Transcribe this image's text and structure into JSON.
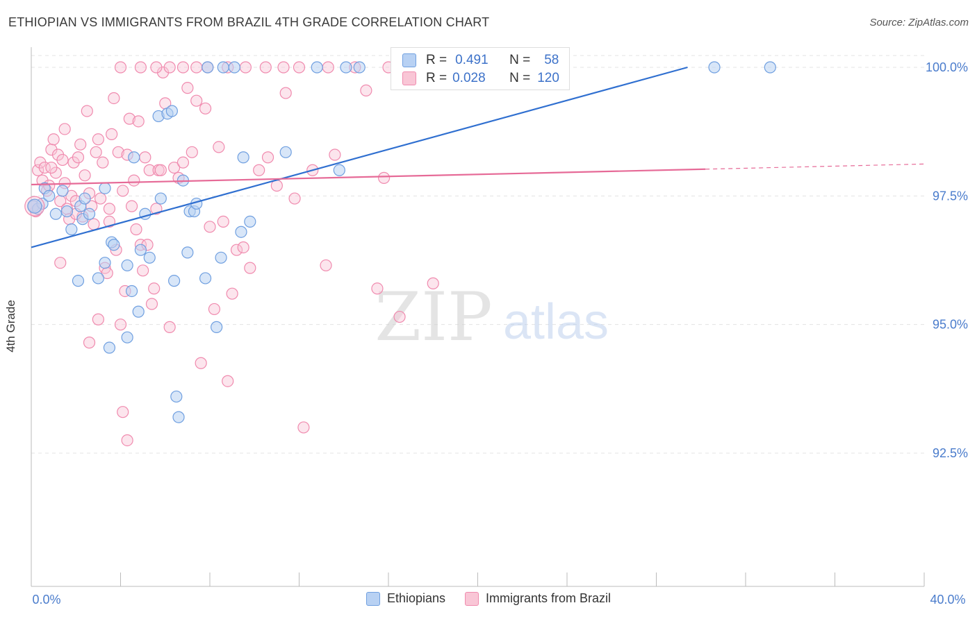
{
  "header": {
    "title": "ETHIOPIAN VS IMMIGRANTS FROM BRAZIL 4TH GRADE CORRELATION CHART",
    "source": "Source: ZipAtlas.com"
  },
  "watermark": {
    "zip": "ZIP",
    "atlas": "atlas"
  },
  "stats": [
    {
      "r_label": "R =",
      "r_value": "0.491",
      "n_label": "N =",
      "n_value": "58",
      "color": "#6f9fe0"
    },
    {
      "r_label": "R =",
      "r_value": "0.028",
      "n_label": "N =",
      "n_value": "120",
      "color": "#f08aae"
    }
  ],
  "legend": [
    {
      "label": "Ethiopians",
      "fill": "#b8d1f3",
      "stroke": "#6f9fe0"
    },
    {
      "label": "Immigrants from Brazil",
      "fill": "#f9c6d6",
      "stroke": "#f08aae"
    }
  ],
  "chart_data": {
    "type": "scatter",
    "title": "ETHIOPIAN VS IMMIGRANTS FROM BRAZIL 4TH GRADE CORRELATION CHART",
    "xlabel": "",
    "ylabel": "4th Grade",
    "xlim": [
      0,
      40
    ],
    "ylim": [
      90.0,
      100.5
    ],
    "x_tick_labels": [
      "0.0%",
      "40.0%"
    ],
    "y_ticks": [
      92.5,
      95.0,
      97.5,
      100.0
    ],
    "y_tick_labels": [
      "92.5%",
      "95.0%",
      "97.5%",
      "100.0%"
    ],
    "grid": true,
    "series": [
      {
        "name": "Ethiopians",
        "color": "#6f9fe0",
        "trend": {
          "x": [
            0.0,
            29.4
          ],
          "y": [
            96.5,
            100.0
          ]
        },
        "points": [
          [
            0.1,
            97.3
          ],
          [
            0.3,
            97.25
          ],
          [
            0.5,
            97.35
          ],
          [
            0.6,
            97.65
          ],
          [
            0.8,
            97.5
          ],
          [
            1.1,
            97.15
          ],
          [
            1.4,
            97.6
          ],
          [
            1.6,
            97.2
          ],
          [
            1.8,
            96.85
          ],
          [
            2.2,
            97.3
          ],
          [
            2.4,
            97.45
          ],
          [
            2.3,
            97.05
          ],
          [
            2.6,
            97.15
          ],
          [
            2.1,
            95.85
          ],
          [
            3.0,
            95.9
          ],
          [
            3.3,
            96.2
          ],
          [
            3.6,
            96.6
          ],
          [
            3.7,
            96.55
          ],
          [
            3.3,
            97.65
          ],
          [
            4.3,
            96.15
          ],
          [
            4.5,
            95.65
          ],
          [
            4.8,
            95.25
          ],
          [
            4.9,
            96.45
          ],
          [
            5.1,
            97.15
          ],
          [
            5.3,
            96.3
          ],
          [
            4.6,
            98.25
          ],
          [
            5.7,
            99.05
          ],
          [
            6.1,
            99.1
          ],
          [
            6.3,
            99.15
          ],
          [
            5.8,
            97.45
          ],
          [
            6.4,
            95.85
          ],
          [
            6.5,
            93.6
          ],
          [
            6.6,
            93.2
          ],
          [
            6.8,
            97.8
          ],
          [
            7.0,
            96.4
          ],
          [
            7.1,
            97.2
          ],
          [
            7.3,
            97.2
          ],
          [
            7.4,
            97.35
          ],
          [
            7.8,
            95.9
          ],
          [
            8.3,
            94.95
          ],
          [
            8.5,
            96.3
          ],
          [
            9.4,
            96.8
          ],
          [
            9.5,
            98.25
          ],
          [
            9.8,
            97.0
          ],
          [
            11.4,
            98.35
          ],
          [
            13.8,
            98.0
          ],
          [
            3.5,
            94.55
          ],
          [
            4.3,
            94.75
          ],
          [
            7.9,
            100.0
          ],
          [
            8.6,
            100.0
          ],
          [
            9.1,
            100.0
          ],
          [
            12.8,
            100.0
          ],
          [
            14.1,
            100.0
          ],
          [
            14.7,
            100.0
          ],
          [
            16.8,
            100.0
          ],
          [
            20.6,
            100.0
          ],
          [
            30.6,
            100.0
          ],
          [
            33.1,
            100.0
          ]
        ]
      },
      {
        "name": "Immigrants from Brazil",
        "color": "#f08aae",
        "trend": {
          "x": [
            0.0,
            30.2
          ],
          "y": [
            97.72,
            98.02
          ]
        },
        "trend_dashed": {
          "x": [
            30.2,
            40.0
          ],
          "y": [
            98.02,
            98.12
          ]
        },
        "points": [
          [
            0.1,
            97.3
          ],
          [
            0.2,
            97.2
          ],
          [
            0.3,
            98.0
          ],
          [
            0.4,
            98.15
          ],
          [
            0.5,
            97.8
          ],
          [
            0.6,
            98.05
          ],
          [
            0.7,
            97.6
          ],
          [
            0.8,
            97.7
          ],
          [
            0.9,
            98.4
          ],
          [
            1.0,
            98.6
          ],
          [
            1.1,
            97.95
          ],
          [
            1.2,
            98.3
          ],
          [
            1.3,
            97.4
          ],
          [
            1.4,
            98.2
          ],
          [
            1.5,
            98.8
          ],
          [
            1.6,
            97.25
          ],
          [
            1.7,
            97.05
          ],
          [
            1.8,
            97.5
          ],
          [
            1.9,
            98.15
          ],
          [
            2.0,
            97.4
          ],
          [
            2.1,
            98.25
          ],
          [
            2.2,
            98.5
          ],
          [
            2.3,
            97.1
          ],
          [
            2.4,
            97.9
          ],
          [
            2.5,
            99.15
          ],
          [
            2.6,
            97.55
          ],
          [
            2.7,
            97.3
          ],
          [
            2.8,
            96.95
          ],
          [
            2.9,
            98.35
          ],
          [
            3.0,
            98.6
          ],
          [
            3.1,
            97.45
          ],
          [
            3.2,
            98.15
          ],
          [
            3.3,
            96.1
          ],
          [
            3.4,
            96.0
          ],
          [
            3.5,
            97.0
          ],
          [
            3.6,
            98.7
          ],
          [
            3.7,
            99.4
          ],
          [
            3.8,
            96.45
          ],
          [
            3.9,
            98.35
          ],
          [
            4.0,
            95.0
          ],
          [
            4.1,
            97.6
          ],
          [
            4.2,
            95.65
          ],
          [
            4.3,
            98.3
          ],
          [
            4.4,
            99.0
          ],
          [
            4.5,
            97.3
          ],
          [
            4.6,
            97.8
          ],
          [
            4.7,
            96.85
          ],
          [
            4.8,
            98.95
          ],
          [
            4.9,
            96.55
          ],
          [
            5.0,
            96.05
          ],
          [
            5.1,
            98.25
          ],
          [
            5.2,
            96.55
          ],
          [
            5.3,
            98.0
          ],
          [
            5.4,
            95.4
          ],
          [
            5.5,
            95.7
          ],
          [
            5.6,
            97.25
          ],
          [
            5.7,
            98.0
          ],
          [
            5.8,
            98.0
          ],
          [
            5.9,
            99.9
          ],
          [
            6.0,
            99.3
          ],
          [
            6.2,
            94.95
          ],
          [
            6.4,
            98.05
          ],
          [
            6.6,
            97.85
          ],
          [
            6.8,
            98.15
          ],
          [
            7.0,
            99.6
          ],
          [
            7.2,
            98.35
          ],
          [
            7.4,
            99.35
          ],
          [
            7.6,
            94.25
          ],
          [
            7.8,
            99.2
          ],
          [
            8.0,
            96.9
          ],
          [
            8.2,
            95.3
          ],
          [
            8.4,
            98.45
          ],
          [
            8.6,
            97.0
          ],
          [
            8.8,
            93.9
          ],
          [
            9.0,
            95.6
          ],
          [
            9.2,
            96.45
          ],
          [
            9.5,
            96.5
          ],
          [
            9.8,
            96.1
          ],
          [
            10.2,
            98.0
          ],
          [
            10.6,
            98.25
          ],
          [
            11.0,
            97.7
          ],
          [
            11.4,
            99.5
          ],
          [
            11.8,
            97.45
          ],
          [
            12.2,
            93.0
          ],
          [
            12.6,
            98.0
          ],
          [
            13.2,
            96.15
          ],
          [
            13.6,
            98.3
          ],
          [
            15.0,
            99.55
          ],
          [
            15.5,
            95.7
          ],
          [
            16.5,
            95.15
          ],
          [
            18.0,
            95.8
          ],
          [
            15.8,
            97.85
          ],
          [
            1.3,
            96.2
          ],
          [
            2.6,
            94.65
          ],
          [
            3.0,
            95.1
          ],
          [
            4.1,
            93.3
          ],
          [
            4.3,
            92.75
          ],
          [
            3.5,
            97.25
          ],
          [
            2.0,
            97.15
          ],
          [
            1.5,
            97.75
          ],
          [
            0.9,
            98.05
          ],
          [
            4.0,
            100.0
          ],
          [
            4.9,
            100.0
          ],
          [
            5.6,
            100.0
          ],
          [
            6.2,
            100.0
          ],
          [
            6.8,
            100.0
          ],
          [
            7.4,
            100.0
          ],
          [
            7.9,
            100.0
          ],
          [
            8.8,
            100.0
          ],
          [
            9.6,
            100.0
          ],
          [
            10.5,
            100.0
          ],
          [
            11.3,
            100.0
          ],
          [
            12.0,
            100.0
          ],
          [
            13.3,
            100.0
          ],
          [
            14.5,
            100.0
          ],
          [
            16.0,
            100.0
          ],
          [
            17.5,
            100.0
          ],
          [
            19.0,
            100.0
          ],
          [
            21.0,
            100.0
          ],
          [
            23.0,
            100.0
          ]
        ]
      }
    ]
  }
}
